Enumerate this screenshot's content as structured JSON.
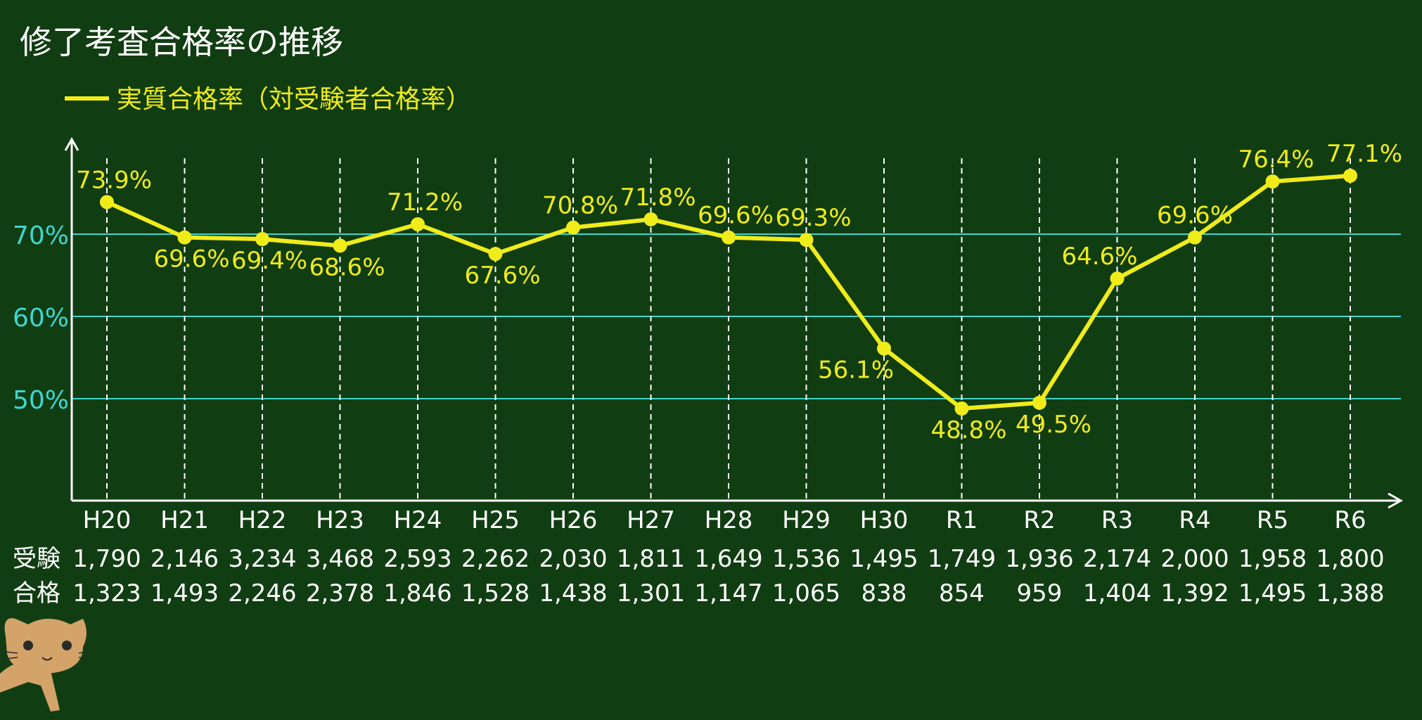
{
  "title": "修了考査合格率の推移",
  "colors": {
    "background": "#113d12",
    "line": "#f0ec1a",
    "gridline": "#3fd6cf",
    "axis": "#ffffff",
    "text": "#ffffff"
  },
  "chart_data": {
    "type": "line",
    "title": "修了考査合格率の推移",
    "xlabel": "",
    "ylabel": "",
    "categories": [
      "H20",
      "H21",
      "H22",
      "H23",
      "H24",
      "H25",
      "H26",
      "H27",
      "H28",
      "H29",
      "H30",
      "R1",
      "R2",
      "R3",
      "R4",
      "R5",
      "R6"
    ],
    "series": [
      {
        "name": "実質合格率（対受験者合格率）",
        "values": [
          73.9,
          69.6,
          69.4,
          68.6,
          71.2,
          67.6,
          70.8,
          71.8,
          69.6,
          69.3,
          56.1,
          48.8,
          49.5,
          64.6,
          69.6,
          76.4,
          77.1
        ],
        "labels": [
          "73.9%",
          "69.6%",
          "69.4%",
          "68.6%",
          "71.2%",
          "67.6%",
          "70.8%",
          "71.8%",
          "69.6%",
          "69.3%",
          "56.1%",
          "48.8%",
          "49.5%",
          "64.6%",
          "69.6%",
          "76.4%",
          "77.1%"
        ]
      }
    ],
    "yticks": [
      50,
      60,
      70
    ],
    "ytick_labels": [
      "50%",
      "60%",
      "70%"
    ],
    "ylim": [
      38,
      81
    ],
    "grid": "horizontal at y ticks, dashed vertical at each category",
    "legend": "top-left",
    "table": {
      "rows": [
        {
          "label": "受験",
          "values": [
            "1,790",
            "2,146",
            "3,234",
            "3,468",
            "2,593",
            "2,262",
            "2,030",
            "1,811",
            "1,649",
            "1,536",
            "1,495",
            "1,749",
            "1,936",
            "2,174",
            "2,000",
            "1,958",
            "1,800"
          ]
        },
        {
          "label": "合格",
          "values": [
            "1,323",
            "1,493",
            "2,246",
            "2,378",
            "1,846",
            "1,528",
            "1,438",
            "1,301",
            "1,147",
            "1,065",
            "838",
            "854",
            "959",
            "1,404",
            "1,392",
            "1,495",
            "1,388"
          ]
        }
      ]
    }
  }
}
